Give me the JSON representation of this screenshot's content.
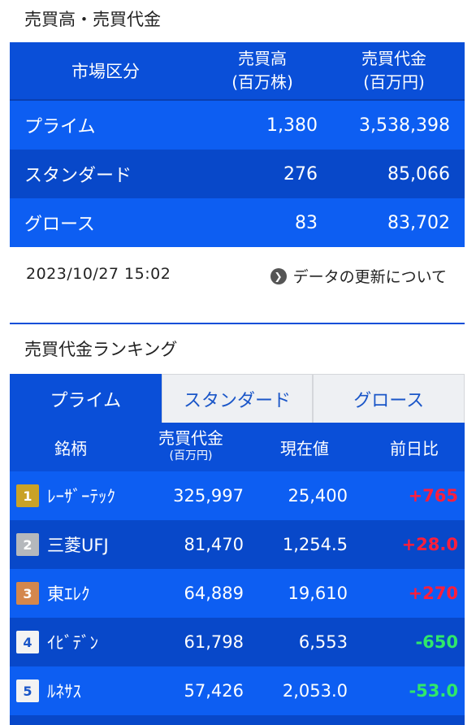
{
  "section1_title": "売買高・売買代金",
  "volume_table": {
    "headers": {
      "market": "市場区分",
      "volume_line1": "売買高",
      "volume_line2": "(百万株)",
      "value_line1": "売買代金",
      "value_line2": "(百万円)"
    },
    "rows": [
      {
        "market": "プライム",
        "volume": "1,380",
        "value": "3,538,398"
      },
      {
        "market": "スタンダード",
        "volume": "276",
        "value": "85,066"
      },
      {
        "market": "グロース",
        "volume": "83",
        "value": "83,702"
      }
    ]
  },
  "updated_at": "2023/10/27 15:02",
  "data_link_label": "データの更新について",
  "section2_title": "売買代金ランキング",
  "ranking": {
    "tabs": [
      "プライム",
      "スタンダード",
      "グロース"
    ],
    "active_tab": "プライム",
    "headers": {
      "name": "銘柄",
      "value": "売買代金",
      "value_unit": "(百万円)",
      "price": "現在値",
      "change": "前日比"
    },
    "rows": [
      {
        "rank": "1",
        "name": "ﾚｰｻﾞｰﾃｯｸ",
        "value": "325,997",
        "price": "25,400",
        "change": "+765"
      },
      {
        "rank": "2",
        "name": "三菱UFJ",
        "value": "81,470",
        "price": "1,254.5",
        "change": "+28.0"
      },
      {
        "rank": "3",
        "name": "東ｴﾚｸ",
        "value": "64,889",
        "price": "19,610",
        "change": "+270"
      },
      {
        "rank": "4",
        "name": "ｲﾋﾞﾃﾞﾝ",
        "value": "61,798",
        "price": "6,553",
        "change": "-650"
      },
      {
        "rank": "5",
        "name": "ﾙﾈｻｽ",
        "value": "57,426",
        "price": "2,053.0",
        "change": "-53.0"
      }
    ]
  },
  "colors": {
    "header_blue": "#0a4fd8",
    "row_light": "#0d5ef2",
    "row_dark": "#0848c9",
    "positive": "#ff1e3c",
    "negative": "#2fe86a"
  }
}
